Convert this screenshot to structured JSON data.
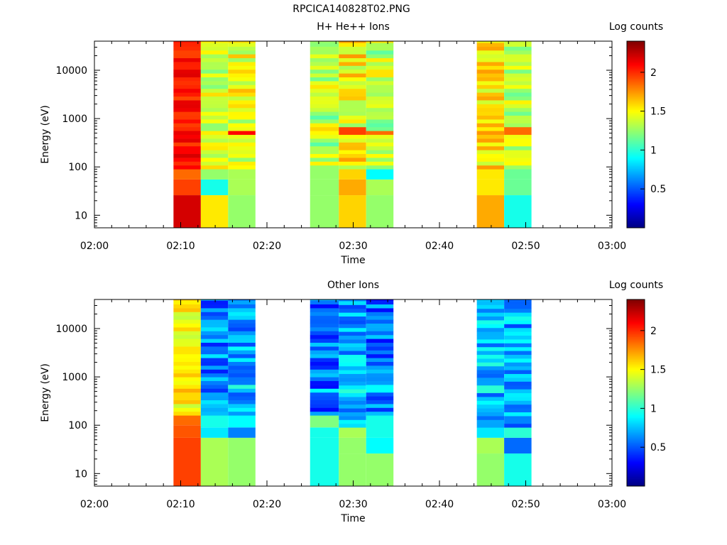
{
  "figure_title": "RPCICA140828T02.PNG",
  "chart_data": [
    {
      "type": "heatmap",
      "title": "H+ He++ Ions",
      "xlabel": "Time",
      "ylabel": "Energy (eV)",
      "x_ticks": [
        "02:00",
        "02:10",
        "02:20",
        "02:30",
        "02:40",
        "02:50",
        "03:00"
      ],
      "x_range": [
        "02:00",
        "03:00"
      ],
      "y_scale": "log",
      "y_ticks": [
        10,
        100,
        1000,
        10000
      ],
      "y_range": [
        5.5,
        40000
      ],
      "colorbar": {
        "label": "Log counts",
        "ticks": [
          0.5,
          1,
          1.5,
          2
        ],
        "range": [
          0,
          2.4
        ],
        "colormap": "jet"
      },
      "columns": [
        {
          "start": "02:09:10",
          "end": "02:12:20",
          "low_bands": [
            [
              5.5,
              26,
              2.2
            ],
            [
              26,
              55,
              1.95
            ],
            [
              55,
              90,
              1.85
            ]
          ],
          "high_mean": 2.05,
          "spread": 0.15,
          "hot_band": 2.25
        },
        {
          "start": "02:12:20",
          "end": "02:15:30",
          "low_bands": [
            [
              5.5,
              26,
              1.55
            ],
            [
              26,
              55,
              0.95
            ],
            [
              55,
              90,
              1.25
            ]
          ],
          "high_mean": 1.4,
          "spread": 0.2,
          "hot_band": 1.8
        },
        {
          "start": "02:15:30",
          "end": "02:18:40",
          "low_bands": [
            [
              5.5,
              26,
              1.25
            ],
            [
              26,
              55,
              1.3
            ],
            [
              55,
              90,
              1.3
            ]
          ],
          "high_mean": 1.45,
          "spread": 0.22,
          "hot_band": 2.1
        },
        {
          "start": "02:25:00",
          "end": "02:28:20",
          "low_bands": [
            [
              5.5,
              26,
              1.25
            ],
            [
              26,
              55,
              1.25
            ],
            [
              55,
              90,
              1.25
            ]
          ],
          "high_mean": 1.35,
          "spread": 0.25,
          "hot_band": 2.0
        },
        {
          "start": "02:28:20",
          "end": "02:31:30",
          "low_bands": [
            [
              5.5,
              26,
              1.6
            ],
            [
              26,
              55,
              1.7
            ],
            [
              55,
              90,
              1.6
            ]
          ],
          "high_mean": 1.5,
          "spread": 0.25,
          "hot_band": 1.95
        },
        {
          "start": "02:31:30",
          "end": "02:34:40",
          "low_bands": [
            [
              5.5,
              26,
              1.25
            ],
            [
              26,
              55,
              1.3
            ],
            [
              55,
              90,
              0.9
            ]
          ],
          "high_mean": 1.35,
          "spread": 0.25,
          "hot_band": 1.85
        },
        {
          "start": "02:44:20",
          "end": "02:47:30",
          "low_bands": [
            [
              5.5,
              26,
              1.7
            ],
            [
              26,
              55,
              1.55
            ],
            [
              55,
              90,
              1.55
            ]
          ],
          "high_mean": 1.55,
          "spread": 0.2,
          "hot_band": 1.95
        },
        {
          "start": "02:47:30",
          "end": "02:50:40",
          "low_bands": [
            [
              5.5,
              26,
              0.95
            ],
            [
              26,
              55,
              1.15
            ],
            [
              55,
              90,
              1.15
            ]
          ],
          "high_mean": 1.35,
          "spread": 0.22,
          "hot_band": 1.85
        }
      ]
    },
    {
      "type": "heatmap",
      "title": "Other Ions",
      "xlabel": "Time",
      "ylabel": "Energy (eV)",
      "x_ticks": [
        "02:00",
        "02:10",
        "02:20",
        "02:30",
        "02:40",
        "02:50",
        "03:00"
      ],
      "x_range": [
        "02:00",
        "03:00"
      ],
      "y_scale": "log",
      "y_ticks": [
        10,
        100,
        1000,
        10000
      ],
      "y_range": [
        5.5,
        40000
      ],
      "colorbar": {
        "label": "Log counts",
        "ticks": [
          0.5,
          1,
          1.5,
          2
        ],
        "range": [
          0,
          2.4
        ],
        "colormap": "jet"
      },
      "columns": [
        {
          "start": "02:09:10",
          "end": "02:12:20",
          "low_bands": [
            [
              5.5,
              55,
              1.95
            ],
            [
              55,
              100,
              1.9
            ],
            [
              100,
              160,
              1.85
            ]
          ],
          "high_mean": 1.5,
          "spread": 0.15,
          "hot_band": 1.7
        },
        {
          "start": "02:12:20",
          "end": "02:15:30",
          "low_bands": [
            [
              5.5,
              55,
              1.3
            ],
            [
              55,
              90,
              0.85
            ],
            [
              90,
              160,
              0.95
            ]
          ],
          "high_mean": 0.6,
          "spread": 0.25,
          "hot_band": 0.9
        },
        {
          "start": "02:15:30",
          "end": "02:18:40",
          "low_bands": [
            [
              5.5,
              55,
              1.25
            ],
            [
              55,
              90,
              0.6
            ],
            [
              90,
              160,
              0.9
            ]
          ],
          "high_mean": 0.7,
          "spread": 0.25,
          "hot_band": 1.0
        },
        {
          "start": "02:25:00",
          "end": "02:28:20",
          "low_bands": [
            [
              5.5,
              55,
              0.95
            ],
            [
              55,
              90,
              0.95
            ],
            [
              90,
              160,
              1.2
            ]
          ],
          "high_mean": 0.55,
          "spread": 0.25,
          "hot_band": 0.9
        },
        {
          "start": "02:28:20",
          "end": "02:31:30",
          "low_bands": [
            [
              5.5,
              26,
              1.25
            ],
            [
              26,
              55,
              1.25
            ],
            [
              55,
              90,
              1.3
            ]
          ],
          "high_mean": 0.7,
          "spread": 0.25,
          "hot_band": 1.0
        },
        {
          "start": "02:31:30",
          "end": "02:34:40",
          "low_bands": [
            [
              5.5,
              26,
              1.25
            ],
            [
              26,
              55,
              0.9
            ],
            [
              55,
              160,
              0.95
            ]
          ],
          "high_mean": 0.55,
          "spread": 0.25,
          "hot_band": 0.9
        },
        {
          "start": "02:44:20",
          "end": "02:47:30",
          "low_bands": [
            [
              5.5,
              26,
              1.25
            ],
            [
              26,
              55,
              1.3
            ],
            [
              55,
              90,
              0.85
            ]
          ],
          "high_mean": 0.75,
          "spread": 0.25,
          "hot_band": 1.0
        },
        {
          "start": "02:47:30",
          "end": "02:50:40",
          "low_bands": [
            [
              5.5,
              26,
              0.95
            ],
            [
              26,
              55,
              0.55
            ],
            [
              55,
              90,
              1.0
            ]
          ],
          "high_mean": 0.7,
          "spread": 0.25,
          "hot_band": 1.0
        }
      ]
    }
  ]
}
